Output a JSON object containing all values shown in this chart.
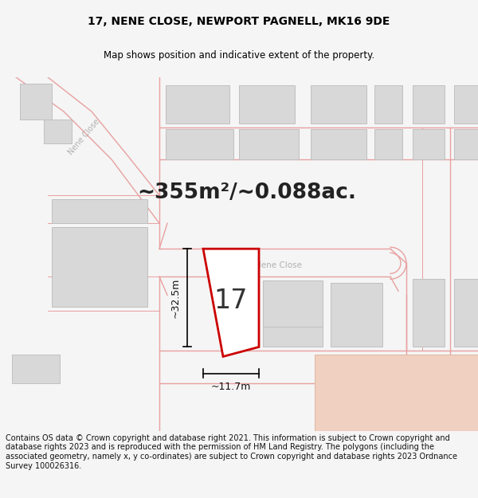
{
  "title": "17, NENE CLOSE, NEWPORT PAGNELL, MK16 9DE",
  "subtitle": "Map shows position and indicative extent of the property.",
  "area_text": "~355m²/~0.088ac.",
  "width_text": "~11.7m",
  "height_text": "~32.5m",
  "number_text": "17",
  "footer_text": "Contains OS data © Crown copyright and database right 2021. This information is subject to Crown copyright and database rights 2023 and is reproduced with the permission of HM Land Registry. The polygons (including the associated geometry, namely x, y co-ordinates) are subject to Crown copyright and database rights 2023 Ordnance Survey 100026316.",
  "bg_color": "#f5f5f5",
  "map_bg": "#ffffff",
  "building_fill": "#d8d8d8",
  "building_edge": "#c0c0c0",
  "plot_outline_color": "#cc0000",
  "plot_fill": "#ffffff",
  "road_line_color": "#e8a0a0",
  "peach_color": "#f0d0c0",
  "peach_edge": "#ddb8a0",
  "title_fontsize": 10,
  "subtitle_fontsize": 8.5,
  "area_fontsize": 19,
  "number_fontsize": 24,
  "measure_fontsize": 9,
  "footer_fontsize": 7,
  "road_label_color": "#b0b0b0",
  "road_label_size": 7.5
}
